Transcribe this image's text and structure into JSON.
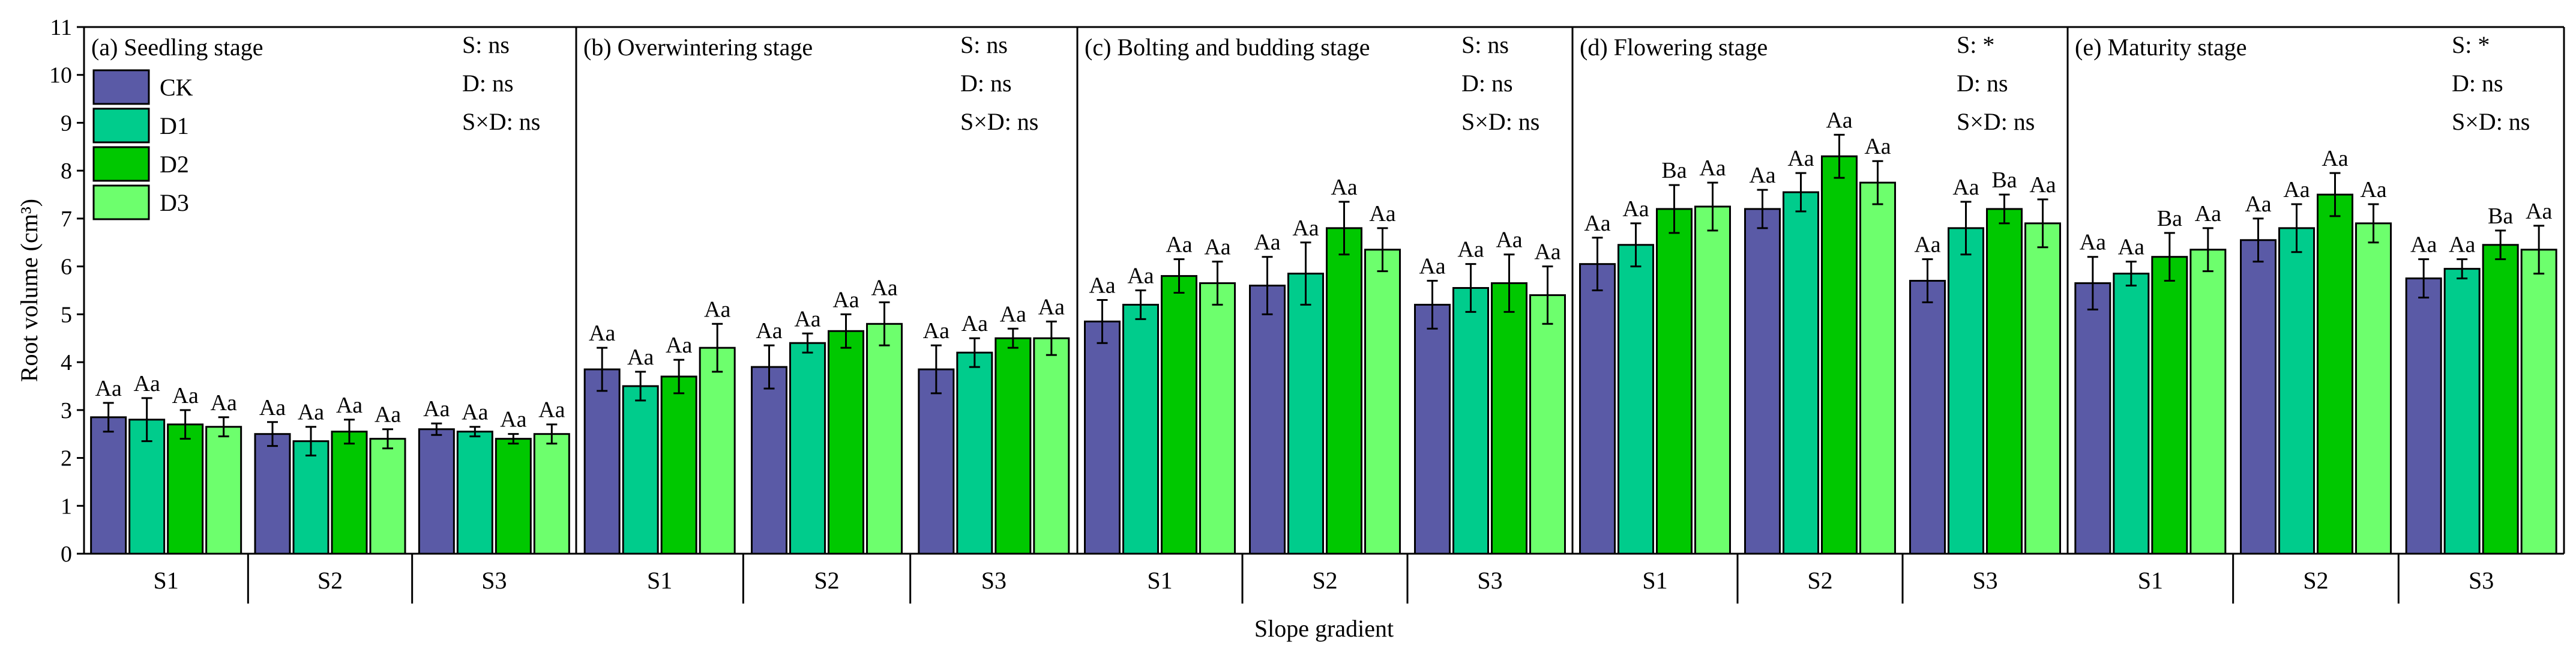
{
  "chart_data": {
    "type": "bar",
    "ylabel": "Root volume (cm³)",
    "xlabel": "Slope gradient",
    "ylim": [
      0,
      11
    ],
    "yticks": [
      0,
      1,
      2,
      3,
      4,
      5,
      6,
      7,
      8,
      9,
      10,
      11
    ],
    "groups": [
      "S1",
      "S2",
      "S3"
    ],
    "legend": {
      "position": "top-left",
      "entries": [
        {
          "name": "CK",
          "color": "#5a5aa6"
        },
        {
          "name": "D1",
          "color": "#00cc8c"
        },
        {
          "name": "D2",
          "color": "#00c800"
        },
        {
          "name": "D3",
          "color": "#6dff6d"
        }
      ]
    },
    "panels": [
      {
        "title": "(a) Seedling stage",
        "stats": [
          "S: ns",
          "D: ns",
          "S×D: ns"
        ],
        "series": [
          {
            "name": "CK",
            "values": [
              2.85,
              2.5,
              2.6
            ],
            "errors": [
              0.3,
              0.25,
              0.12
            ],
            "labels": [
              "Aa",
              "Aa",
              "Aa"
            ]
          },
          {
            "name": "D1",
            "values": [
              2.8,
              2.35,
              2.55
            ],
            "errors": [
              0.45,
              0.3,
              0.1
            ],
            "labels": [
              "Aa",
              "Aa",
              "Aa"
            ]
          },
          {
            "name": "D2",
            "values": [
              2.7,
              2.55,
              2.4
            ],
            "errors": [
              0.3,
              0.25,
              0.1
            ],
            "labels": [
              "Aa",
              "Aa",
              "Aa"
            ]
          },
          {
            "name": "D3",
            "values": [
              2.65,
              2.4,
              2.5
            ],
            "errors": [
              0.2,
              0.2,
              0.2
            ],
            "labels": [
              "Aa",
              "Aa",
              "Aa"
            ]
          }
        ]
      },
      {
        "title": "(b) Overwintering stage",
        "stats": [
          "S: ns",
          "D: ns",
          "S×D: ns"
        ],
        "series": [
          {
            "name": "CK",
            "values": [
              3.85,
              3.9,
              3.85
            ],
            "errors": [
              0.45,
              0.45,
              0.5
            ],
            "labels": [
              "Aa",
              "Aa",
              "Aa"
            ]
          },
          {
            "name": "D1",
            "values": [
              3.5,
              4.4,
              4.2
            ],
            "errors": [
              0.3,
              0.2,
              0.3
            ],
            "labels": [
              "Aa",
              "Aa",
              "Aa"
            ]
          },
          {
            "name": "D2",
            "values": [
              3.7,
              4.65,
              4.5
            ],
            "errors": [
              0.35,
              0.35,
              0.2
            ],
            "labels": [
              "Aa",
              "Aa",
              "Aa"
            ]
          },
          {
            "name": "D3",
            "values": [
              4.3,
              4.8,
              4.5
            ],
            "errors": [
              0.5,
              0.45,
              0.35
            ],
            "labels": [
              "Aa",
              "Aa",
              "Aa"
            ]
          }
        ]
      },
      {
        "title": "(c) Bolting and budding stage",
        "stats": [
          "S: ns",
          "D: ns",
          "S×D: ns"
        ],
        "series": [
          {
            "name": "CK",
            "values": [
              4.85,
              5.6,
              5.2
            ],
            "errors": [
              0.45,
              0.6,
              0.5
            ],
            "labels": [
              "Aa",
              "Aa",
              "Aa"
            ]
          },
          {
            "name": "D1",
            "values": [
              5.2,
              5.85,
              5.55
            ],
            "errors": [
              0.3,
              0.65,
              0.5
            ],
            "labels": [
              "Aa",
              "Aa",
              "Aa"
            ]
          },
          {
            "name": "D2",
            "values": [
              5.8,
              6.8,
              5.65
            ],
            "errors": [
              0.35,
              0.55,
              0.6
            ],
            "labels": [
              "Aa",
              "Aa",
              "Aa"
            ]
          },
          {
            "name": "D3",
            "values": [
              5.65,
              6.35,
              5.4
            ],
            "errors": [
              0.45,
              0.45,
              0.6
            ],
            "labels": [
              "Aa",
              "Aa",
              "Aa"
            ]
          }
        ]
      },
      {
        "title": "(d) Flowering stage",
        "stats": [
          "S: *",
          "D: ns",
          "S×D: ns"
        ],
        "series": [
          {
            "name": "CK",
            "values": [
              6.05,
              7.2,
              5.7
            ],
            "errors": [
              0.55,
              0.4,
              0.45
            ],
            "labels": [
              "Aa",
              "Aa",
              "Aa"
            ]
          },
          {
            "name": "D1",
            "values": [
              6.45,
              7.55,
              6.8
            ],
            "errors": [
              0.45,
              0.4,
              0.55
            ],
            "labels": [
              "Aa",
              "Aa",
              "Aa"
            ]
          },
          {
            "name": "D2",
            "values": [
              7.2,
              8.3,
              7.2
            ],
            "errors": [
              0.5,
              0.45,
              0.3
            ],
            "labels": [
              "Ba",
              "Aa",
              "Ba"
            ]
          },
          {
            "name": "D3",
            "values": [
              7.25,
              7.75,
              6.9
            ],
            "errors": [
              0.5,
              0.45,
              0.5
            ],
            "labels": [
              "Aa",
              "Aa",
              "Aa"
            ]
          }
        ]
      },
      {
        "title": "(e) Maturity stage",
        "stats": [
          "S: *",
          "D: ns",
          "S×D: ns"
        ],
        "series": [
          {
            "name": "CK",
            "values": [
              5.65,
              6.55,
              5.75
            ],
            "errors": [
              0.55,
              0.45,
              0.4
            ],
            "labels": [
              "Aa",
              "Aa",
              "Aa"
            ]
          },
          {
            "name": "D1",
            "values": [
              5.85,
              6.8,
              5.95
            ],
            "errors": [
              0.25,
              0.5,
              0.2
            ],
            "labels": [
              "Aa",
              "Aa",
              "Aa"
            ]
          },
          {
            "name": "D2",
            "values": [
              6.2,
              7.5,
              6.45
            ],
            "errors": [
              0.5,
              0.45,
              0.3
            ],
            "labels": [
              "Ba",
              "Aa",
              "Ba"
            ]
          },
          {
            "name": "D3",
            "values": [
              6.35,
              6.9,
              6.35
            ],
            "errors": [
              0.45,
              0.4,
              0.5
            ],
            "labels": [
              "Aa",
              "Aa",
              "Aa"
            ]
          }
        ]
      }
    ]
  }
}
